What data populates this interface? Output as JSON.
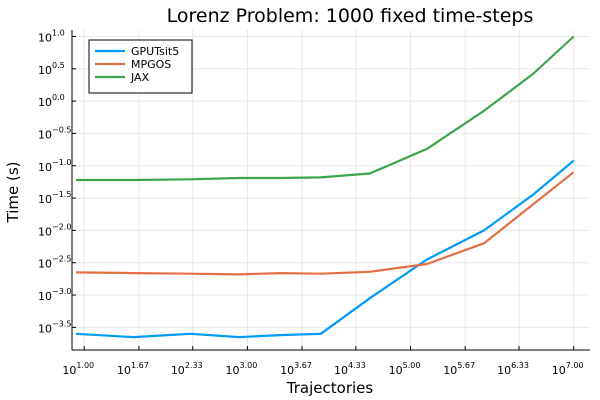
{
  "chart_data": {
    "type": "line",
    "title": "Lorenz Problem: 1000 fixed time-steps",
    "xlabel": "Trajectories",
    "ylabel": "Time (s)",
    "x_scale": "log10",
    "y_scale": "log10",
    "xlim_exp": [
      0.85,
      7.2
    ],
    "ylim_exp": [
      -3.85,
      1.1
    ],
    "x_ticks": [
      {
        "exp": 1.0,
        "base": "10",
        "label": "1.00"
      },
      {
        "exp": 1.67,
        "base": "10",
        "label": "1.67"
      },
      {
        "exp": 2.33,
        "base": "10",
        "label": "2.33"
      },
      {
        "exp": 3.0,
        "base": "10",
        "label": "3.00"
      },
      {
        "exp": 3.67,
        "base": "10",
        "label": "3.67"
      },
      {
        "exp": 4.33,
        "base": "10",
        "label": "4.33"
      },
      {
        "exp": 5.0,
        "base": "10",
        "label": "5.00"
      },
      {
        "exp": 5.67,
        "base": "10",
        "label": "5.67"
      },
      {
        "exp": 6.33,
        "base": "10",
        "label": "6.33"
      },
      {
        "exp": 7.0,
        "base": "10",
        "label": "7.00"
      }
    ],
    "y_ticks": [
      {
        "exp": 1.0,
        "base": "10",
        "label": "1.0"
      },
      {
        "exp": 0.5,
        "base": "10",
        "label": "0.5"
      },
      {
        "exp": 0.0,
        "base": "10",
        "label": "0.0"
      },
      {
        "exp": -0.5,
        "base": "10",
        "label": "−0.5"
      },
      {
        "exp": -1.0,
        "base": "10",
        "label": "−1.0"
      },
      {
        "exp": -1.5,
        "base": "10",
        "label": "−1.5"
      },
      {
        "exp": -2.0,
        "base": "10",
        "label": "−2.0"
      },
      {
        "exp": -2.5,
        "base": "10",
        "label": "−2.5"
      },
      {
        "exp": -3.0,
        "base": "10",
        "label": "−3.0"
      },
      {
        "exp": -3.5,
        "base": "10",
        "label": "−3.5"
      }
    ],
    "grid": true,
    "legend_position": "top-left",
    "series": [
      {
        "name": "GPUTsit5",
        "color": "#009af9",
        "points": [
          [
            0.9,
            -3.6
          ],
          [
            1.6,
            -3.65
          ],
          [
            2.3,
            -3.6
          ],
          [
            2.9,
            -3.65
          ],
          [
            3.4,
            -3.62
          ],
          [
            3.9,
            -3.6
          ],
          [
            4.5,
            -3.05
          ],
          [
            5.2,
            -2.45
          ],
          [
            5.9,
            -2.0
          ],
          [
            6.5,
            -1.45
          ],
          [
            7.0,
            -0.92
          ]
        ]
      },
      {
        "name": "MPGOS",
        "color": "#e26f46",
        "points": [
          [
            0.9,
            -2.65
          ],
          [
            1.6,
            -2.66
          ],
          [
            2.3,
            -2.67
          ],
          [
            2.9,
            -2.68
          ],
          [
            3.4,
            -2.66
          ],
          [
            3.9,
            -2.67
          ],
          [
            4.5,
            -2.64
          ],
          [
            5.2,
            -2.52
          ],
          [
            5.9,
            -2.2
          ],
          [
            6.5,
            -1.6
          ],
          [
            7.0,
            -1.1
          ]
        ]
      },
      {
        "name": "JAX",
        "color": "#3da44d",
        "points": [
          [
            0.9,
            -1.22
          ],
          [
            1.6,
            -1.22
          ],
          [
            2.3,
            -1.21
          ],
          [
            2.9,
            -1.19
          ],
          [
            3.4,
            -1.19
          ],
          [
            3.9,
            -1.18
          ],
          [
            4.5,
            -1.12
          ],
          [
            5.2,
            -0.74
          ],
          [
            5.9,
            -0.15
          ],
          [
            6.5,
            0.42
          ],
          [
            7.0,
            1.0
          ]
        ]
      }
    ]
  }
}
